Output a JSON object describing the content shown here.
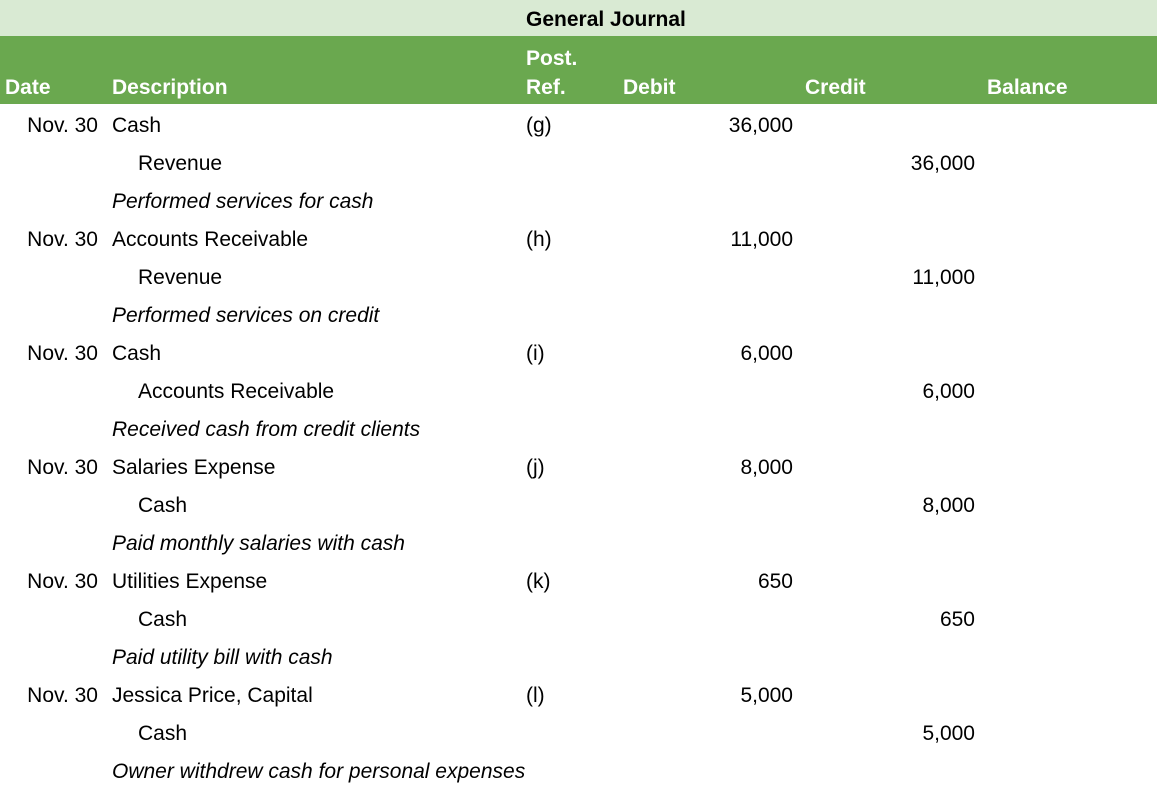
{
  "header": {
    "title": "General Journal"
  },
  "table": {
    "columns": [
      "Date",
      "Description",
      "Post. Ref.",
      "Debit",
      "Credit",
      "Balance"
    ],
    "entries": [
      {
        "date": "Nov. 30",
        "debit_account": "Cash",
        "ref": "(g)",
        "debit": "36,000",
        "credit_account": "Revenue",
        "credit": "36,000",
        "memo": "Performed services for cash"
      },
      {
        "date": "Nov. 30",
        "debit_account": "Accounts Receivable",
        "ref": "(h)",
        "debit": "11,000",
        "credit_account": "Revenue",
        "credit": "11,000",
        "memo": "Performed services on credit"
      },
      {
        "date": "Nov. 30",
        "debit_account": "Cash",
        "ref": "(i)",
        "debit": "6,000",
        "credit_account": "Accounts Receivable",
        "credit": "6,000",
        "memo": "Received cash from credit clients"
      },
      {
        "date": "Nov. 30",
        "debit_account": "Salaries Expense",
        "ref": "(j)",
        "debit": "8,000",
        "credit_account": "Cash",
        "credit": "8,000",
        "memo": "Paid monthly salaries with cash"
      },
      {
        "date": "Nov. 30",
        "debit_account": "Utilities Expense",
        "ref": "(k)",
        "debit": "650",
        "credit_account": "Cash",
        "credit": "650",
        "memo": "Paid utility bill with cash"
      },
      {
        "date": "Nov. 30",
        "debit_account": "Jessica Price, Capital",
        "ref": "(l)",
        "debit": "5,000",
        "credit_account": "Cash",
        "credit": "5,000",
        "memo": "Owner withdrew cash for personal expenses"
      }
    ]
  }
}
